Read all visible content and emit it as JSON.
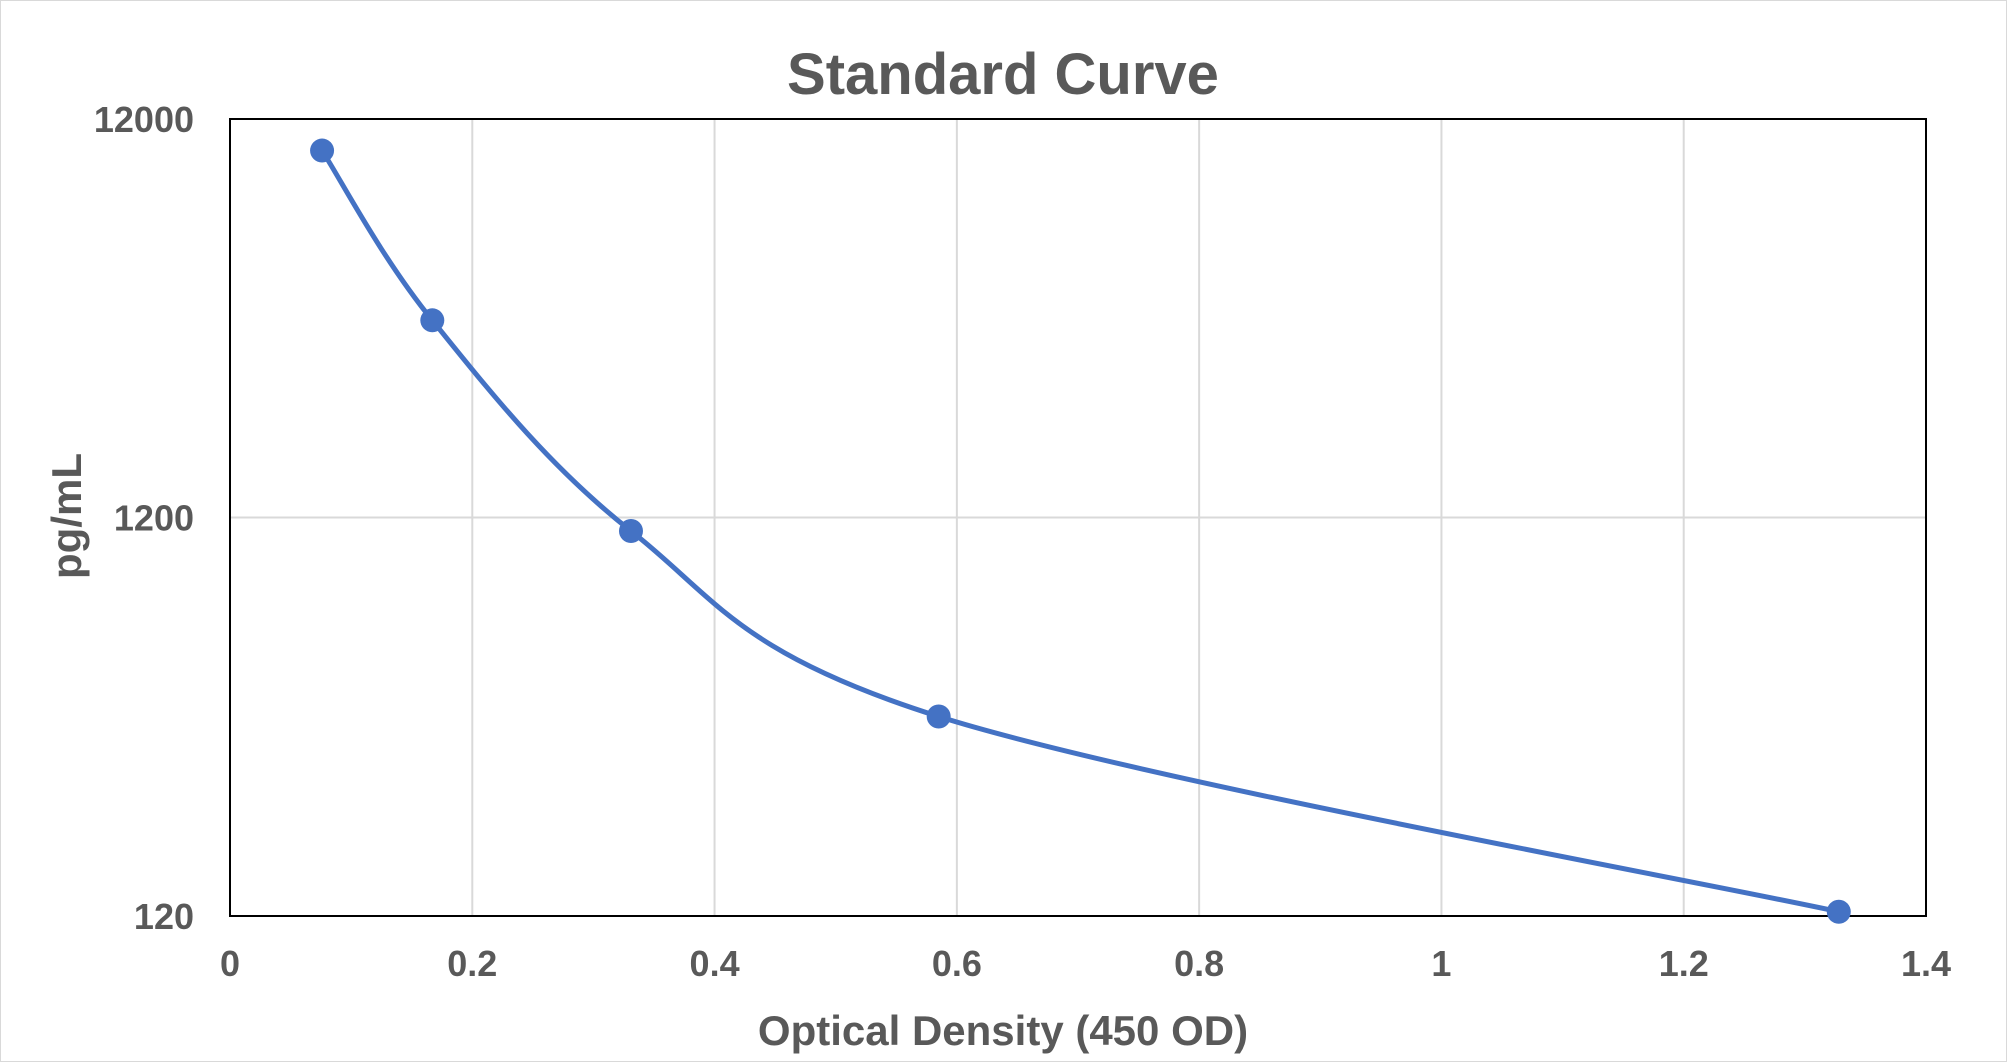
{
  "chart_data": {
    "type": "scatter",
    "title": "Standard Curve",
    "xlabel": "Optical Density (450 OD)",
    "ylabel": "pg/mL",
    "xlim": [
      0,
      1.4
    ],
    "ylim": [
      120,
      12000
    ],
    "yscale": "log",
    "x_ticks": [
      0,
      0.2,
      0.4,
      0.6,
      0.8,
      1,
      1.2,
      1.4
    ],
    "x_tick_labels": [
      "0",
      "0.2",
      "0.4",
      "0.6",
      "0.8",
      "1",
      "1.2",
      "1.4"
    ],
    "y_ticks": [
      120,
      1200,
      12000
    ],
    "y_tick_labels": [
      "120",
      "1200",
      "12000"
    ],
    "grid": true,
    "legend": "none",
    "smooth_line": true,
    "series_color": "#4472c4",
    "series": [
      {
        "x": [
          0.076,
          0.167,
          0.331,
          0.585,
          1.328
        ],
        "y": [
          10000,
          3750,
          1110,
          380,
          123
        ]
      }
    ]
  }
}
